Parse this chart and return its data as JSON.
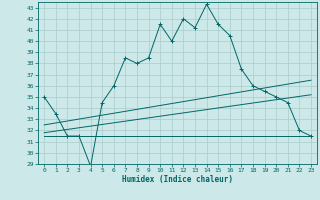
{
  "xlabel": "Humidex (Indice chaleur)",
  "bg_color": "#cde8e8",
  "grid_color": "#aacccc",
  "line_color": "#006666",
  "xlim": [
    -0.5,
    23.5
  ],
  "ylim": [
    29,
    43.5
  ],
  "yticks": [
    29,
    30,
    31,
    32,
    33,
    34,
    35,
    36,
    37,
    38,
    39,
    40,
    41,
    42,
    43
  ],
  "xticks": [
    0,
    1,
    2,
    3,
    4,
    5,
    6,
    7,
    8,
    9,
    10,
    11,
    12,
    13,
    14,
    15,
    16,
    17,
    18,
    19,
    20,
    21,
    22,
    23
  ],
  "series1_x": [
    0,
    1,
    2,
    3,
    4,
    5,
    6,
    7,
    8,
    9,
    10,
    11,
    12,
    13,
    14,
    15,
    16,
    17,
    18,
    19,
    20,
    21,
    22,
    23
  ],
  "series1_y": [
    35.0,
    33.5,
    31.5,
    31.5,
    28.8,
    34.5,
    36.0,
    38.5,
    38.0,
    38.5,
    41.5,
    40.0,
    42.0,
    41.2,
    43.3,
    41.5,
    40.5,
    37.5,
    36.0,
    35.5,
    35.0,
    34.5,
    32.0,
    31.5
  ],
  "series2_x": [
    0,
    23
  ],
  "series2_y": [
    31.5,
    31.5
  ],
  "series3_x": [
    0,
    23
  ],
  "series3_y": [
    31.8,
    35.2
  ],
  "series4_x": [
    0,
    23
  ],
  "series4_y": [
    32.5,
    36.5
  ]
}
